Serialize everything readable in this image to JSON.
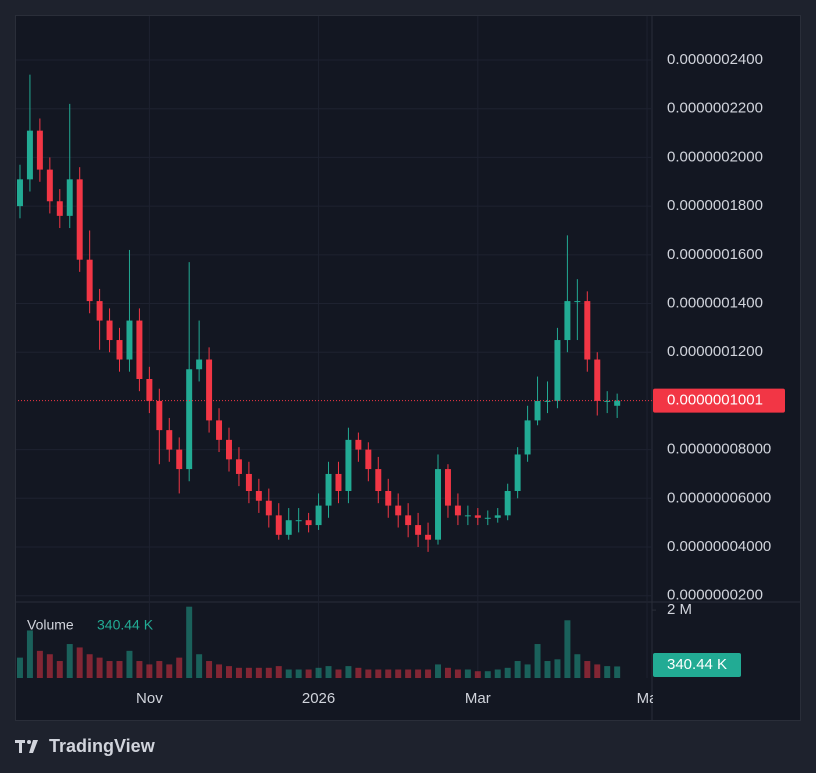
{
  "chart_data": {
    "type": "candlestick",
    "categories": [
      null,
      null,
      null,
      null,
      null,
      null,
      null,
      null,
      null,
      null,
      null,
      null,
      null,
      "Nov",
      null,
      null,
      null,
      null,
      null,
      null,
      null,
      null,
      null,
      null,
      null,
      null,
      null,
      null,
      null,
      null,
      "2026",
      null,
      null,
      null,
      null,
      null,
      null,
      null,
      null,
      null,
      null,
      null,
      null,
      null,
      null,
      null,
      "Mar",
      null,
      null,
      null,
      null,
      null,
      null,
      null,
      null,
      null,
      null,
      null,
      null,
      null,
      null,
      null,
      null,
      "Ma"
    ],
    "open": [
      1.8e-07,
      1.91e-07,
      2.11e-07,
      1.95e-07,
      1.82e-07,
      1.76e-07,
      1.91e-07,
      1.58e-07,
      1.41e-07,
      1.33e-07,
      1.25e-07,
      1.17e-07,
      1.33e-07,
      1.09e-07,
      1e-07,
      8.8e-08,
      8e-08,
      7.2e-08,
      1.13e-07,
      1.17e-07,
      9.2e-08,
      8.4e-08,
      7.6e-08,
      7e-08,
      6.3e-08,
      5.9e-08,
      5.3e-08,
      4.5e-08,
      5.1e-08,
      5.1e-08,
      4.9e-08,
      5.7e-08,
      7e-08,
      6.3e-08,
      8.4e-08,
      8e-08,
      7.2e-08,
      6.3e-08,
      5.7e-08,
      5.3e-08,
      4.9e-08,
      4.5e-08,
      4.3e-08,
      7.2e-08,
      5.7e-08,
      5.3e-08,
      5.3e-08,
      5.2e-08,
      5.2e-08,
      5.3e-08,
      6.3e-08,
      7.8e-08,
      9.2e-08,
      1e-07,
      1e-07,
      1.25e-07,
      1.41e-07,
      1.41e-07,
      1.17e-07,
      1e-07,
      9.8e-08,
      null,
      null,
      null
    ],
    "high": [
      1.97e-07,
      2.34e-07,
      2.16e-07,
      2e-07,
      1.87e-07,
      2.22e-07,
      1.96e-07,
      1.7e-07,
      1.46e-07,
      1.38e-07,
      1.3e-07,
      1.62e-07,
      1.38e-07,
      1.14e-07,
      1.05e-07,
      9.3e-08,
      8.5e-08,
      1.57e-07,
      1.33e-07,
      1.22e-07,
      9.7e-08,
      8.9e-08,
      8.1e-08,
      7.5e-08,
      6.8e-08,
      6.4e-08,
      5.8e-08,
      5.6e-08,
      5.6e-08,
      5.4e-08,
      6.2e-08,
      7.5e-08,
      7.5e-08,
      8.9e-08,
      8.7e-08,
      8.3e-08,
      7.7e-08,
      6.8e-08,
      6.2e-08,
      5.8e-08,
      5.4e-08,
      5e-08,
      7.8e-08,
      7.4e-08,
      6.2e-08,
      5.7e-08,
      5.6e-08,
      5.5e-08,
      5.6e-08,
      6.6e-08,
      8.1e-08,
      9.8e-08,
      1.1e-07,
      1.08e-07,
      1.3e-07,
      1.68e-07,
      1.5e-07,
      1.45e-07,
      1.2e-07,
      1.04e-07,
      1.03e-07,
      null,
      null,
      null
    ],
    "low": [
      1.75e-07,
      1.86e-07,
      1.9e-07,
      1.77e-07,
      1.71e-07,
      1.71e-07,
      1.53e-07,
      1.36e-07,
      1.21e-07,
      1.2e-07,
      1.12e-07,
      1.12e-07,
      1.04e-07,
      9.5e-08,
      7.4e-08,
      7.5e-08,
      6.2e-08,
      6.7e-08,
      1.08e-07,
      8.7e-08,
      7.9e-08,
      7.1e-08,
      6.5e-08,
      5.8e-08,
      5.4e-08,
      4.8e-08,
      4.3e-08,
      4.3e-08,
      4.6e-08,
      4.6e-08,
      4.7e-08,
      5.2e-08,
      5.8e-08,
      5.8e-08,
      7.5e-08,
      6.7e-08,
      5.8e-08,
      5.2e-08,
      4.8e-08,
      4.4e-08,
      4e-08,
      3.8e-08,
      4.1e-08,
      5.2e-08,
      4.9e-08,
      4.9e-08,
      4.9e-08,
      4.9e-08,
      5e-08,
      5.1e-08,
      6e-08,
      7.5e-08,
      9e-08,
      9.5e-08,
      9.7e-08,
      1.2e-07,
      1.25e-07,
      1.12e-07,
      9.4e-08,
      9.5e-08,
      9.3e-08,
      null,
      null,
      null
    ],
    "close": [
      1.91e-07,
      2.11e-07,
      1.95e-07,
      1.82e-07,
      1.76e-07,
      1.91e-07,
      1.58e-07,
      1.41e-07,
      1.33e-07,
      1.25e-07,
      1.17e-07,
      1.33e-07,
      1.09e-07,
      1e-07,
      8.8e-08,
      8e-08,
      7.2e-08,
      1.13e-07,
      1.17e-07,
      9.2e-08,
      8.4e-08,
      7.6e-08,
      7e-08,
      6.3e-08,
      5.9e-08,
      5.3e-08,
      4.5e-08,
      5.1e-08,
      5.1e-08,
      4.9e-08,
      5.7e-08,
      7e-08,
      6.3e-08,
      8.4e-08,
      8e-08,
      7.2e-08,
      6.3e-08,
      5.7e-08,
      5.3e-08,
      4.9e-08,
      4.5e-08,
      4.3e-08,
      7.2e-08,
      5.7e-08,
      5.3e-08,
      5.3e-08,
      5.2e-08,
      5.2e-08,
      5.3e-08,
      6.3e-08,
      7.8e-08,
      9.2e-08,
      1e-07,
      1e-07,
      1.25e-07,
      1.41e-07,
      1.41e-07,
      1.17e-07,
      1e-07,
      1e-07,
      1.001e-07,
      null,
      null,
      null
    ],
    "up_color": "#22ab94",
    "down_color": "#f23645",
    "ylim": [
      1.823e-08,
      2.585e-07
    ],
    "yticks": [
      {
        "value": 2e-08,
        "label": "0.0000000200"
      },
      {
        "value": 4e-08,
        "label": "0.00000004000"
      },
      {
        "value": 6e-08,
        "label": "0.00000006000"
      },
      {
        "value": 8e-08,
        "label": "0.00000008000"
      },
      {
        "value": 1.2e-07,
        "label": "0.0000001200"
      },
      {
        "value": 1.4e-07,
        "label": "0.0000001400"
      },
      {
        "value": 1.6e-07,
        "label": "0.0000001600"
      },
      {
        "value": 1.8e-07,
        "label": "0.0000001800"
      },
      {
        "value": 2e-07,
        "label": "0.0000002000"
      },
      {
        "value": 2.2e-07,
        "label": "0.0000002200"
      },
      {
        "value": 2.4e-07,
        "label": "0.0000002400"
      }
    ],
    "grid": true,
    "last_price": {
      "value": 1.001e-07,
      "label": "0.0000001001"
    },
    "volume": {
      "name": "Volume",
      "values": [
        600000,
        1400000,
        800000,
        700000,
        500000,
        1000000,
        900000,
        700000,
        600000,
        500000,
        500000,
        800000,
        500000,
        400000,
        500000,
        400000,
        600000,
        2100000,
        700000,
        500000,
        400000,
        350000,
        300000,
        300000,
        300000,
        300000,
        350000,
        250000,
        250000,
        250000,
        300000,
        350000,
        250000,
        350000,
        300000,
        250000,
        250000,
        250000,
        250000,
        250000,
        250000,
        250000,
        400000,
        300000,
        250000,
        250000,
        200000,
        200000,
        250000,
        300000,
        500000,
        400000,
        1000000,
        500000,
        550000,
        1700000,
        700000,
        500000,
        400000,
        350000,
        340440,
        null,
        null,
        null
      ],
      "last_label": "340.44 K",
      "ylim": [
        0,
        2150000
      ],
      "yticks": [
        {
          "value": 2000000,
          "label": "2 M"
        }
      ]
    },
    "branding": "TradingView"
  }
}
